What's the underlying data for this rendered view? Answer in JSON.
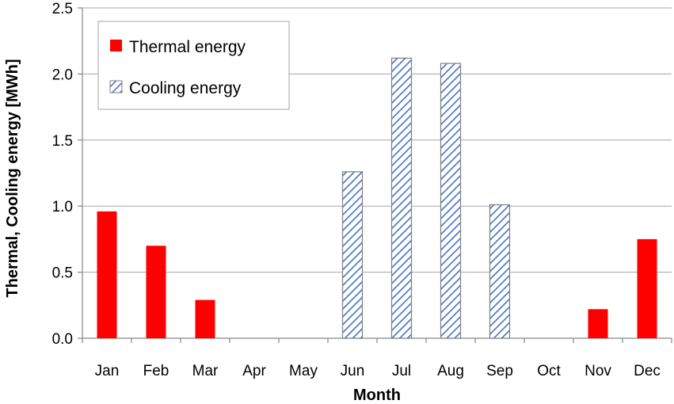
{
  "chart_data": {
    "type": "bar",
    "categories": [
      "Jan",
      "Feb",
      "Mar",
      "Apr",
      "May",
      "Jun",
      "Jul",
      "Aug",
      "Sep",
      "Oct",
      "Nov",
      "Dec"
    ],
    "series": [
      {
        "name": "Thermal energy",
        "values": [
          0.96,
          0.7,
          0.29,
          0,
          0,
          0,
          0,
          0,
          0,
          0,
          0.22,
          0.75
        ],
        "color": "#ff0000",
        "pattern": "solid"
      },
      {
        "name": "Cooling energy",
        "values": [
          0,
          0,
          0,
          0,
          0,
          1.26,
          2.12,
          2.08,
          1.01,
          0,
          0,
          0
        ],
        "color": "#4472c4",
        "pattern": "diagonal-hatch"
      }
    ],
    "xlabel": "Month",
    "ylabel": "Thermal, Cooling energy [MWh]",
    "ylim": [
      0,
      2.5
    ],
    "yticks": [
      "0.0",
      "0.5",
      "1.0",
      "1.5",
      "2.0",
      "2.5"
    ],
    "ytick_values": [
      0,
      0.5,
      1.0,
      1.5,
      2.0,
      2.5
    ],
    "grid": true,
    "legend_position": "top-left"
  }
}
